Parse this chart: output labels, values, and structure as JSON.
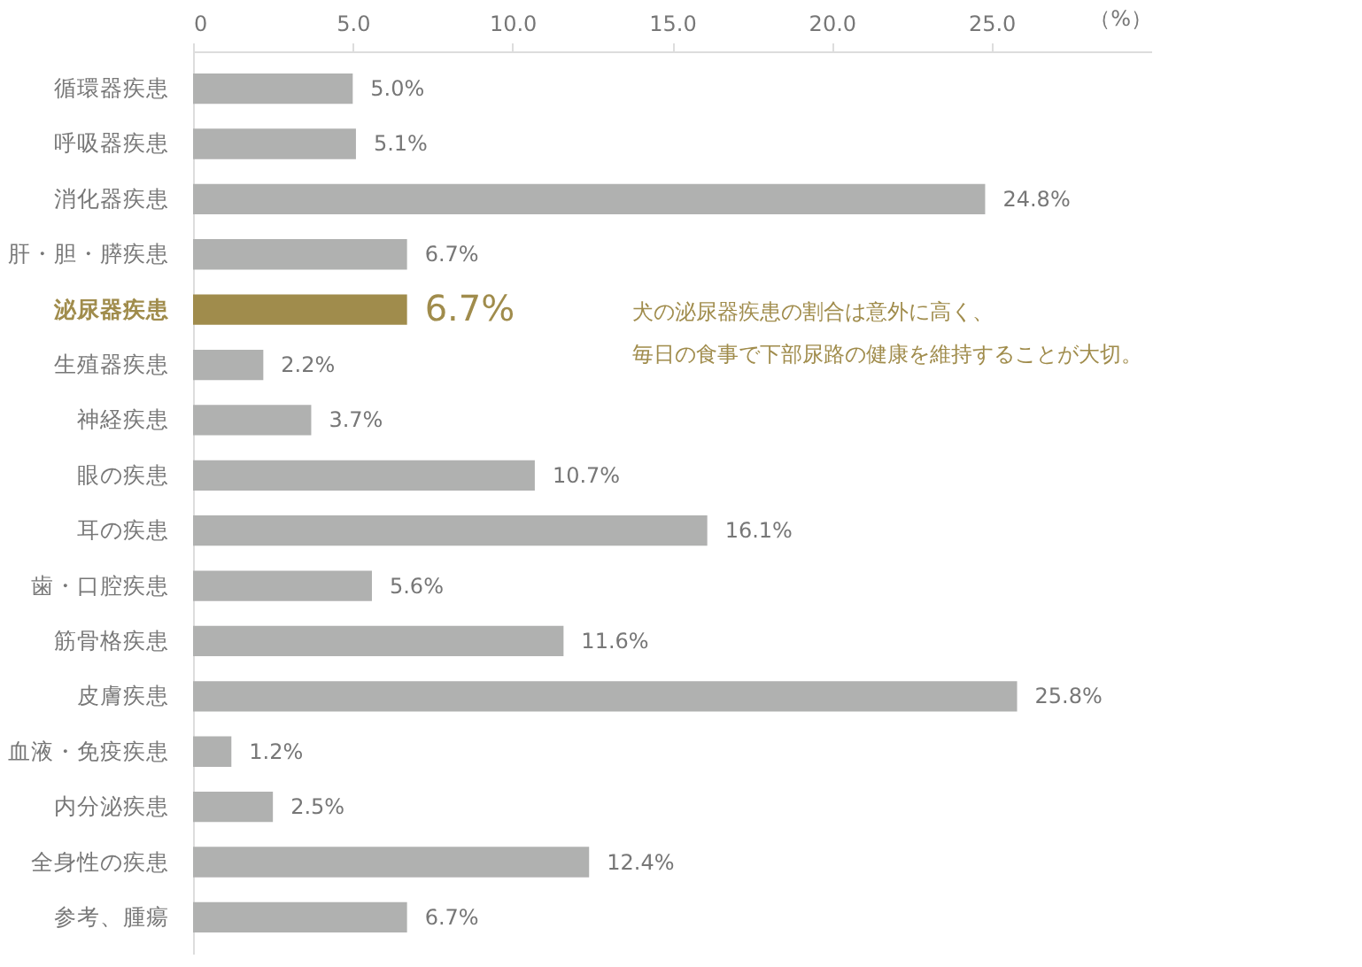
{
  "chart_data": {
    "type": "bar",
    "orientation": "horizontal",
    "categories": [
      "循環器疾患",
      "呼吸器疾患",
      "消化器疾患",
      "肝・胆・膵疾患",
      "泌尿器疾患",
      "生殖器疾患",
      "神経疾患",
      "眼の疾患",
      "耳の疾患",
      "歯・口腔疾患",
      "筋骨格疾患",
      "皮膚疾患",
      "血液・免疫疾患",
      "内分泌疾患",
      "全身性の疾患",
      "参考、腫瘍"
    ],
    "values": [
      5.0,
      5.1,
      24.8,
      6.7,
      6.7,
      2.2,
      3.7,
      10.7,
      16.1,
      5.6,
      11.6,
      25.8,
      1.2,
      2.5,
      12.4,
      6.7
    ],
    "value_labels": [
      "5.0%",
      "5.1%",
      "24.8%",
      "6.7%",
      "6.7%",
      "2.2%",
      "3.7%",
      "10.7%",
      "16.1%",
      "5.6%",
      "11.6%",
      "25.8%",
      "1.2%",
      "2.5%",
      "12.4%",
      "6.7%"
    ],
    "colors": [
      "#b0b1b0",
      "#b0b1b0",
      "#b0b1b0",
      "#b0b1b0",
      "#a08c4c",
      "#b0b1b0",
      "#b0b1b0",
      "#b0b1b0",
      "#b0b1b0",
      "#b0b1b0",
      "#b0b1b0",
      "#b0b1b0",
      "#b0b1b0",
      "#b0b1b0",
      "#b0b1b0",
      "#b0b1b0"
    ],
    "xlabel": "（%）",
    "xlim": [
      0,
      30
    ],
    "xticks": [
      0,
      {
        "value": 5,
        "label": "5.0"
      },
      {
        "value": 10,
        "label": "10.0"
      },
      {
        "value": 15,
        "label": "15.0"
      },
      {
        "value": 20,
        "label": "20.0"
      },
      {
        "value": 25,
        "label": "25.0"
      }
    ],
    "annotations": [
      "犬の泌尿器疾患の割合は意外に高く、",
      "毎日の食事で下部尿路の健康を維持することが大切。"
    ],
    "grid": false
  }
}
